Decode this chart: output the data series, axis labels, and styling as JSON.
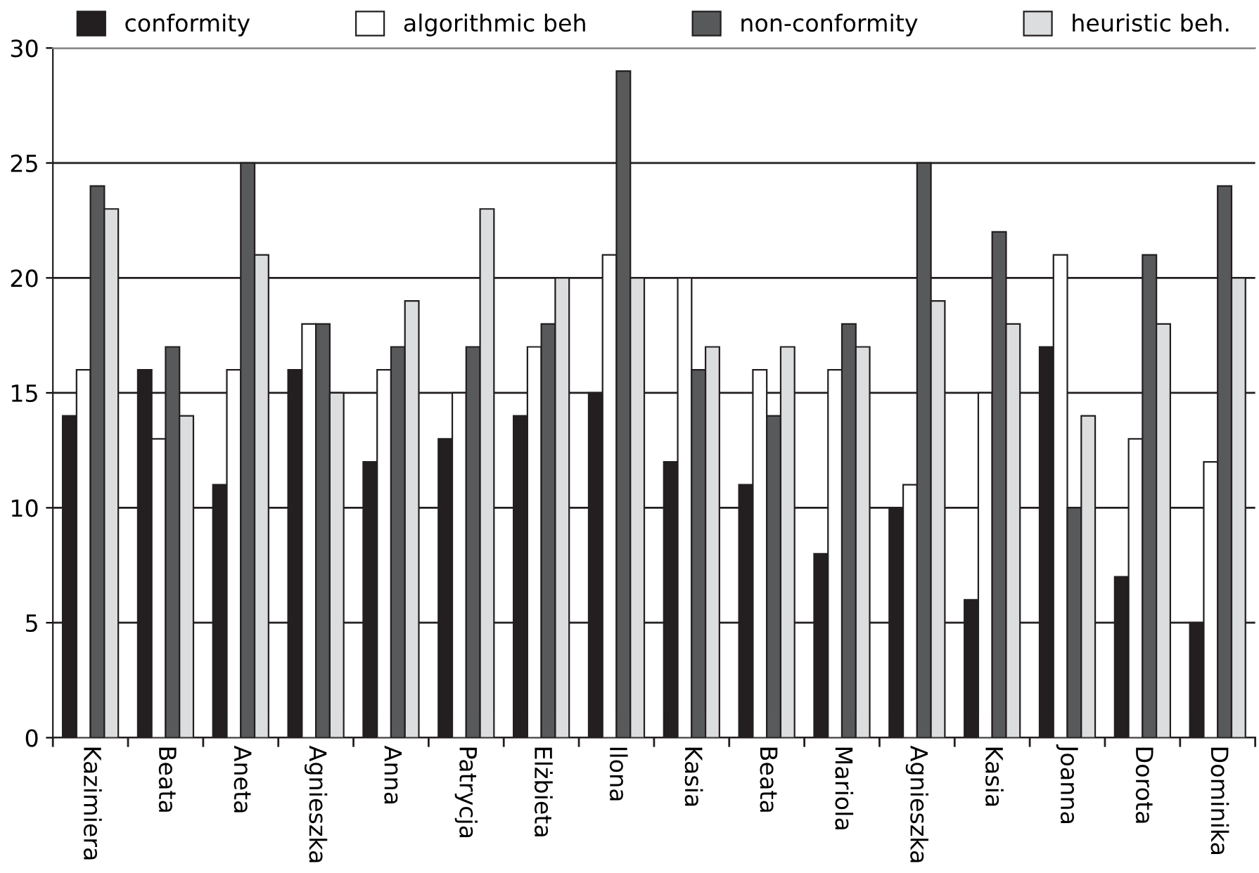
{
  "chart_data": {
    "type": "bar",
    "categories": [
      "Kazimiera",
      "Beata",
      "Aneta",
      "Agnieszka",
      "Anna",
      "Patrycja",
      "Elżbieta",
      "Ilona",
      "Kasia",
      "Beata",
      "Mariola",
      "Agnieszka",
      "Kasia",
      "Joanna",
      "Dorota",
      "Dominika"
    ],
    "series": [
      {
        "name": "conformity",
        "color": "#231f20",
        "values": [
          14,
          16,
          11,
          16,
          12,
          13,
          14,
          15,
          12,
          11,
          8,
          10,
          6,
          17,
          7,
          5
        ]
      },
      {
        "name": "algorithmic beh",
        "color": "#ffffff",
        "values": [
          16,
          13,
          16,
          18,
          16,
          15,
          17,
          21,
          20,
          16,
          16,
          11,
          15,
          21,
          13,
          12
        ]
      },
      {
        "name": "non-conformity",
        "color": "#58595b",
        "values": [
          24,
          17,
          25,
          18,
          17,
          17,
          18,
          29,
          16,
          14,
          18,
          25,
          22,
          10,
          21,
          24
        ]
      },
      {
        "name": "heuristic beh.",
        "color": "#dcdddf",
        "values": [
          23,
          14,
          21,
          15,
          19,
          23,
          20,
          20,
          17,
          17,
          17,
          19,
          18,
          14,
          18,
          20
        ]
      }
    ],
    "ylim": [
      0,
      30
    ],
    "yticks": [
      0,
      5,
      10,
      15,
      20,
      25,
      30
    ],
    "grid": "y",
    "legend": "top"
  }
}
